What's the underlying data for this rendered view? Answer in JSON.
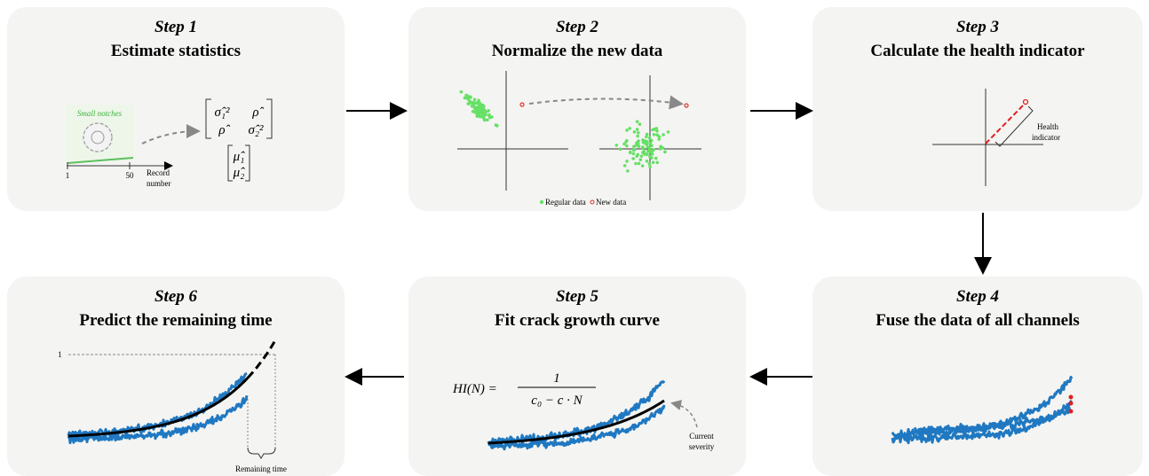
{
  "steps": [
    {
      "label": "Step 1",
      "title": "Estimate statistics"
    },
    {
      "label": "Step 2",
      "title": "Normalize the new data"
    },
    {
      "label": "Step 3",
      "title": "Calculate the health indicator"
    },
    {
      "label": "Step 4",
      "title": "Fuse the data of all channels"
    },
    {
      "label": "Step 5",
      "title": "Fit crack growth curve"
    },
    {
      "label": "Step 6",
      "title": "Predict the remaining time"
    }
  ],
  "step1": {
    "inset_label": "Small notches",
    "axis_start": "1",
    "axis_mark": "50",
    "axis_label": [
      "Record",
      "number"
    ],
    "covariance": [
      "σ̂₁²",
      "ρ̂",
      "ρ̂",
      "σ̂₂²"
    ],
    "mean": [
      "μ̂₁",
      "μ̂₂"
    ]
  },
  "step2": {
    "legend": [
      "Regular data",
      "New data"
    ]
  },
  "step3": {
    "annotation": [
      "Health",
      "indicator"
    ]
  },
  "step5": {
    "formula_left": "HI(N) =",
    "numerator": "1",
    "denominator": "c₀ − c · N",
    "annotation": [
      "Current",
      "severity"
    ]
  },
  "step6": {
    "threshold": "1",
    "annotation": "Remaining time"
  }
}
